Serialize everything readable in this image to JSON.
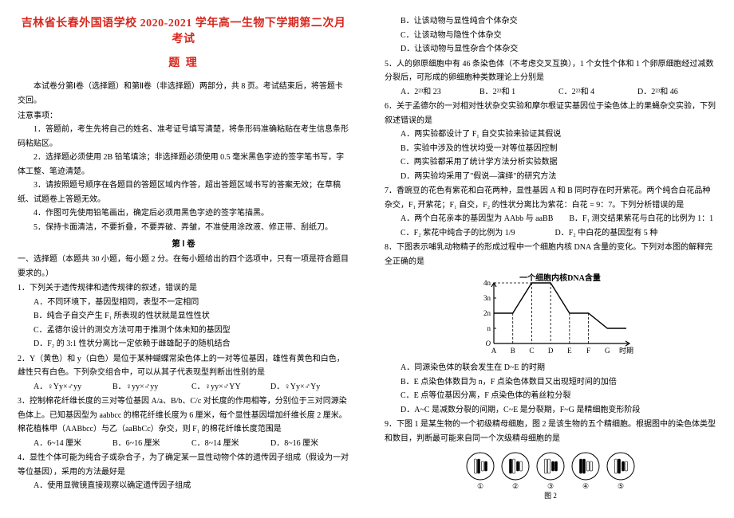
{
  "title_main": "吉林省长春外国语学校 2020-2021 学年高一生物下学期第二次月考试",
  "title_sub": "题  理",
  "intro": "本试卷分第Ⅰ卷（选择题）和第Ⅱ卷（非选择题）两部分，共 8 页。考试结束后，将答题卡交回。",
  "notice_head": "注意事项：",
  "notices": [
    "1．答题前，考生先将自己的姓名、准考证号填写清楚，将条形码准确粘贴在考生信息条形码粘贴区。",
    "2．选择题必须使用 2B 铅笔填涂；非选择题必须使用 0.5 毫米黑色字迹的签字笔书写，字体工整、笔迹清楚。",
    "3．请按照题号顺序在各题目的答题区域内作答，超出答题区域书写的答案无效；在草稿纸、试题卷上答题无效。",
    "4．作图可先使用铅笔画出，确定后必须用黑色字迹的签字笔描黑。",
    "5．保持卡面清洁，不要折叠，不要弄破、弄皱，不准使用涂改液、修正带、刮纸刀。"
  ],
  "section1": "第 Ⅰ 卷",
  "section1_desc": "一、选择题（本题共 30 小题，每小题 2 分。在每小题给出的四个选项中，只有一项是符合题目要求的。）",
  "q1": {
    "stem": "1．下列关于遗传规律和遗传规律的叙述，错误的是",
    "opts": [
      "A．不同环境下，基因型相同，表型不一定相同",
      "B．纯合子自交产生 F₁ 所表现的性状就是显性性状",
      "C．孟德尔设计的测交方法可用于推测个体未知的基因型",
      "D．F₂ 的 3:1 性状分离比一定依赖于雌雄配子的随机结合"
    ]
  },
  "q2": {
    "stem": "2．Y（黄色）和 y（白色）是位于某种蝴蝶常染色体上的一对等位基因，雄性有黄色和白色，雌性只有白色。下列杂交组合中，可以从其子代表现型判断出性别的是",
    "opts": [
      "A．♀Yy×♂yy",
      "B．♀yy×♂yy",
      "C．♀yy×♂YY",
      "D．♀Yy×♂Yy"
    ]
  },
  "q3": {
    "stem": "3．控制棉花纤维长度的三对等位基因 A/a、B/b、C/c 对长度的作用相等，分别位于三对同源染色体上。已知基因型为 aabbcc 的棉花纤维长度为 6 厘米，每个显性基因增加纤维长度 2 厘米。棉花植株甲（AABbcc）与乙（aaBbCc）杂交，则 F₁ 的棉花纤维长度范围是",
    "opts": [
      "A．6~14 厘米",
      "B．6~16 厘米",
      "C．8~14 厘米",
      "D．8~16 厘米"
    ]
  },
  "q4": {
    "stem": "4．显性个体可能为纯合子或杂合子，为了确定某一显性动物个体的遗传因子组成（假设为一对等位基因），采用的方法最好是",
    "opts_left": [
      "A．使用显微镜直接观察以确定遗传因子组成"
    ],
    "opts_right": [
      "B．让该动物与显性纯合个体杂交",
      "C．让该动物与隐性个体杂交",
      "D．让该动物与显性杂合个体杂交"
    ]
  },
  "q5": {
    "stem": "5．人的卵原细胞中有 46 条染色体（不考虑交叉互换），1 个女性个体和 1 个卵原细胞经过减数分裂后，可形成的卵细胞种类数理论上分别是",
    "opts": [
      "A．2²³和 23",
      "B．2²³和 1",
      "C．2²³和 4",
      "D．2²³和 46"
    ]
  },
  "q6": {
    "stem": "6．关于孟德尔的一对相对性状杂交实验和摩尔根证实基因位于染色体上的果蝇杂交实验，下列叙述错误的是",
    "opts": [
      "A．两实验都设计了 F₁ 自交实验来验证其假说",
      "B．实验中涉及的性状均受一对等位基因控制",
      "C．两实验都采用了统计学方法分析实验数据",
      "D．两实验均采用了\"假说—演绎\"的研究方法"
    ]
  },
  "q7": {
    "stem": "7．香豌豆的花色有紫花和白花两种，显性基因 A 和 B 同时存在时开紫花。两个纯合白花品种杂交，F₁ 开紫花；F₁ 自交，F₂ 的性状分离比为紫花：白花 = 9：7。下列分析错误的是",
    "opts": [
      "A．两个白花亲本的基因型为 AAbb 与 aaBB　　B．F₁ 测交结果紫花与白花的比例为 1：1",
      "C．F₂ 紫花中纯合子的比例为 1/9　　　　　D．F₂ 中白花的基因型有 5 种"
    ]
  },
  "q8": {
    "stem": "8．下图表示哺乳动物精子的形成过程中一个细胞内核 DNA 含量的变化。下列对本图的解释完全正确的是",
    "opts": [
      "A．同源染色体的联会发生在 D~E 的时期",
      "B．E 点染色体数目为 n，F 点染色体数目又出现短时间的加倍",
      "C．E 点等位基因分离，F 点染色体的着丝粒分裂",
      "D．A~C 是减数分裂的间期，C~E 是分裂期，F~G 是精细胞变形阶段"
    ]
  },
  "q9": {
    "stem": "9．下图 1 是某生物的一个初级精母细胞，图 2 是该生物的五个精细胞。根据图中的染色体类型和数目，判断最可能来自同一个次级精母细胞的是"
  },
  "chart": {
    "title": "一个细胞内核DNA含量",
    "y_labels": [
      "4n",
      "3n",
      "2n",
      "n"
    ],
    "y_values": [
      4,
      3,
      2,
      1
    ],
    "x_labels": [
      "A",
      "B",
      "C",
      "D",
      "E",
      "F",
      "G",
      "时期"
    ],
    "points": [
      {
        "x": 0,
        "y": 2
      },
      {
        "x": 1,
        "y": 2
      },
      {
        "x": 2,
        "y": 4
      },
      {
        "x": 3,
        "y": 4
      },
      {
        "x": 4,
        "y": 2
      },
      {
        "x": 5,
        "y": 2
      },
      {
        "x": 6,
        "y": 1
      },
      {
        "x": 7,
        "y": 1
      }
    ],
    "line_color": "#000000",
    "grid_dash": "3,2",
    "bg": "#ffffff",
    "stroke_w": 1.4,
    "font_size": 9
  },
  "fig2": {
    "circles": [
      "①",
      "②",
      "③",
      "④",
      "⑤"
    ],
    "label": "图 2",
    "stroke": "#000000"
  }
}
